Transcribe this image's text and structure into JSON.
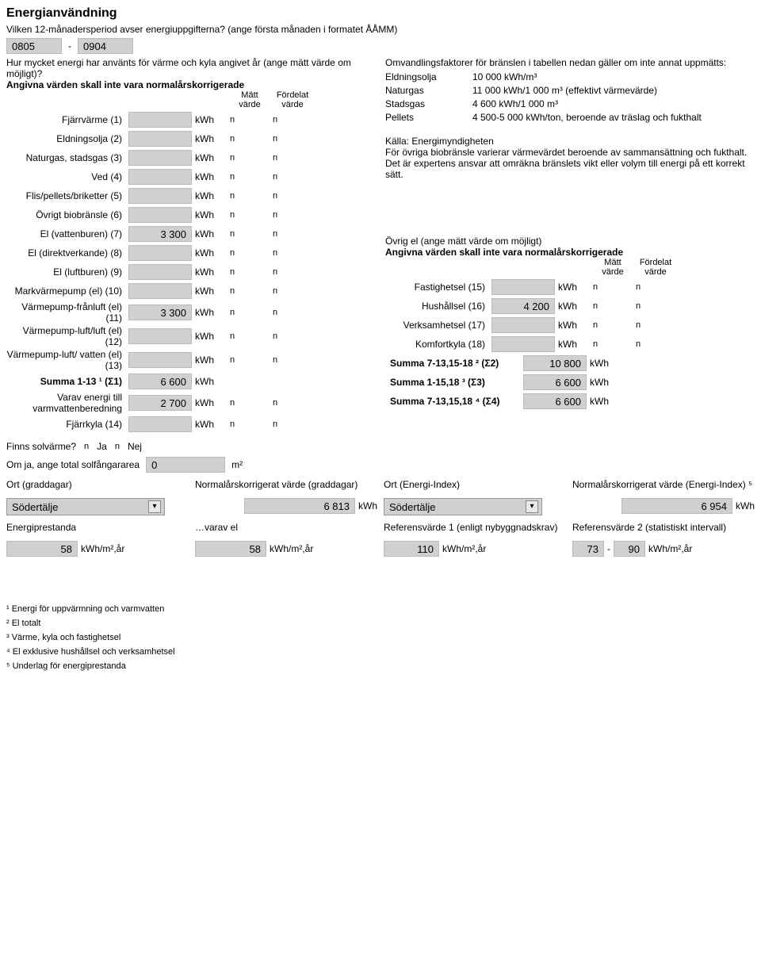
{
  "title": "Energianvändning",
  "intro_line": "Vilken 12-månadersperiod avser energiuppgifterna? (ange första månaden i formatet ÅÅMM)",
  "period": {
    "from": "0805",
    "sep": "-",
    "to": "0904"
  },
  "q_measured": "Hur mycket energi har använts för värme och kyla angivet år (ange mätt värde om möjligt)?",
  "note_norm": "Angivna värden skall inte vara normalårskorrigerade",
  "col_h1": "Mätt värde",
  "col_h2": "Fördelat värde",
  "energy_rows": [
    {
      "label": "Fjärrvärme (1)",
      "value": "",
      "unit": "kWh",
      "r1": "n",
      "r2": "n"
    },
    {
      "label": "Eldningsolja (2)",
      "value": "",
      "unit": "kWh",
      "r1": "n",
      "r2": "n"
    },
    {
      "label": "Naturgas, stadsgas (3)",
      "value": "",
      "unit": "kWh",
      "r1": "n",
      "r2": "n"
    },
    {
      "label": "Ved (4)",
      "value": "",
      "unit": "kWh",
      "r1": "n",
      "r2": "n"
    },
    {
      "label": "Flis/pellets/briketter (5)",
      "value": "",
      "unit": "kWh",
      "r1": "n",
      "r2": "n"
    },
    {
      "label": "Övrigt biobränsle (6)",
      "value": "",
      "unit": "kWh",
      "r1": "n",
      "r2": "n"
    },
    {
      "label": "El (vattenburen) (7)",
      "value": "3 300",
      "unit": "kWh",
      "r1": "n",
      "r2": "n"
    },
    {
      "label": "El (direktverkande) (8)",
      "value": "",
      "unit": "kWh",
      "r1": "n",
      "r2": "n"
    },
    {
      "label": "El (luftburen) (9)",
      "value": "",
      "unit": "kWh",
      "r1": "n",
      "r2": "n"
    },
    {
      "label": "Markvärmepump (el) (10)",
      "value": "",
      "unit": "kWh",
      "r1": "n",
      "r2": "n"
    },
    {
      "label": "Värmepump-frånluft (el) (11)",
      "value": "3 300",
      "unit": "kWh",
      "r1": "n",
      "r2": "n"
    },
    {
      "label": "Värmepump-luft/luft (el) (12)",
      "value": "",
      "unit": "kWh",
      "r1": "n",
      "r2": "n"
    },
    {
      "label": "Värmepump-luft/ vatten (el) (13)",
      "value": "",
      "unit": "kWh",
      "r1": "n",
      "r2": "n"
    }
  ],
  "summa1": {
    "label": "Summa 1-13 ¹ (Σ1)",
    "value": "6 600",
    "unit": "kWh"
  },
  "varav": {
    "label": "Varav energi till varmvattenberedning",
    "value": "2 700",
    "unit": "kWh",
    "r1": "n",
    "r2": "n"
  },
  "fjarrkyla": {
    "label": "Fjärrkyla (14)",
    "value": "",
    "unit": "kWh",
    "r1": "n",
    "r2": "n"
  },
  "conv": {
    "heading": "Omvandlingsfaktorer för bränslen i tabellen nedan gäller om inte annat uppmätts:",
    "rows": [
      {
        "k": "Eldningsolja",
        "v": "10 000 kWh/m³"
      },
      {
        "k": "Naturgas",
        "v": "11 000 kWh/1 000 m³ (effektivt värmevärde)"
      },
      {
        "k": "Stadsgas",
        "v": "4 600 kWh/1 000 m³"
      },
      {
        "k": "Pellets",
        "v": "4 500-5 000 kWh/ton, beroende av träslag och fukthalt"
      }
    ],
    "source": "Källa: Energimyndigheten",
    "note": "För övriga biobränsle varierar värmevärdet beroende av sammansättning och fukthalt. Det är expertens ansvar att omräkna bränslets vikt eller volym till energi på ett korrekt sätt."
  },
  "ovrig_el": {
    "title": "Övrig el (ange mätt värde om möjligt)",
    "note": "Angivna värden skall inte vara normalårskorrigerade",
    "h1": "Mätt värde",
    "h2": "Fördelat värde",
    "rows": [
      {
        "label": "Fastighetsel (15)",
        "value": "",
        "unit": "kWh",
        "r1": "n",
        "r2": "n"
      },
      {
        "label": "Hushållsel (16)",
        "value": "4 200",
        "unit": "kWh",
        "r1": "n",
        "r2": "n"
      },
      {
        "label": "Verksamhetsel (17)",
        "value": "",
        "unit": "kWh",
        "r1": "n",
        "r2": "n"
      },
      {
        "label": "Komfortkyla (18)",
        "value": "",
        "unit": "kWh",
        "r1": "n",
        "r2": "n"
      }
    ],
    "sums": [
      {
        "label": "Summa 7-13,15-18 ² (Σ2)",
        "value": "10 800",
        "unit": "kWh"
      },
      {
        "label": "Summa 1-15,18 ³ (Σ3)",
        "value": "6 600",
        "unit": "kWh"
      },
      {
        "label": "Summa 7-13,15,18 ⁴ (Σ4)",
        "value": "6 600",
        "unit": "kWh"
      }
    ]
  },
  "solar": {
    "q": "Finns solvärme?",
    "ja": "Ja",
    "nej": "Nej",
    "area_q": "Om ja, ange total solfångararea",
    "area_val": "0",
    "area_unit": "m²"
  },
  "bottom": {
    "ort_grad_label": "Ort (graddagar)",
    "ort_grad_val": "Södertälje",
    "norm_grad_label": "Normalårskorrigerat värde (graddagar)",
    "norm_grad_val": "6 813",
    "norm_grad_unit": "kWh",
    "ort_ei_label": "Ort (Energi-Index)",
    "ort_ei_val": "Södertälje",
    "norm_ei_label": "Normalårskorrigerat värde (Energi-Index) ⁵",
    "norm_ei_val": "6 954",
    "norm_ei_unit": "kWh",
    "eperf_label": "Energiprestanda",
    "eperf_val": "58",
    "eperf_unit": "kWh/m²,år",
    "varavel_label": "…varav el",
    "varavel_val": "58",
    "varavel_unit": "kWh/m²,år",
    "ref1_label": "Referensvärde 1 (enligt nybyggnadskrav)",
    "ref1_val": "110",
    "ref1_unit": "kWh/m²,år",
    "ref2_label": "Referensvärde 2 (statistiskt intervall)",
    "ref2_from": "73",
    "ref2_sep": "-",
    "ref2_to": "90",
    "ref2_unit": "kWh/m²,år"
  },
  "footnotes": [
    "¹ Energi för uppvärmning och varmvatten",
    "² El totalt",
    "³ Värme, kyla och fastighetsel",
    "⁴ El exklusive hushållsel och verksamhetsel",
    "⁵ Underlag för energiprestanda"
  ],
  "radio_glyph": "n",
  "tri_glyph": "▾"
}
